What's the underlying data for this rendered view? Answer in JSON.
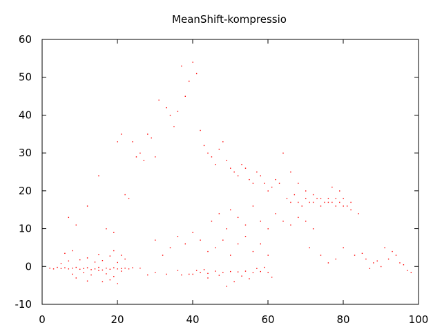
{
  "chart_data": {
    "type": "scatter",
    "title": "MeanShift-kompressio",
    "xlabel": "",
    "ylabel": "",
    "xlim": [
      0,
      100
    ],
    "ylim": [
      -10,
      60
    ],
    "xticks": [
      0,
      20,
      40,
      60,
      80,
      100
    ],
    "yticks": [
      -10,
      0,
      10,
      20,
      30,
      40,
      50,
      60
    ],
    "grid": false,
    "legend": "none",
    "colors": {
      "points": "#ff0000",
      "axes": "#000000",
      "background": "#ffffff"
    },
    "series": [
      {
        "values": [
          [
            2,
            -0.4
          ],
          [
            3,
            -0.6
          ],
          [
            4,
            -0.2
          ],
          [
            5,
            -0.5
          ],
          [
            6,
            -0.3
          ],
          [
            7,
            -0.6
          ],
          [
            8,
            -0.4
          ],
          [
            9,
            -0.2
          ],
          [
            10,
            -0.7
          ],
          [
            11,
            -0.5
          ],
          [
            12,
            -0.3
          ],
          [
            13,
            -0.8
          ],
          [
            14,
            -0.6
          ],
          [
            15,
            -0.2
          ],
          [
            16,
            -0.9
          ],
          [
            17,
            -0.4
          ],
          [
            18,
            -0.7
          ],
          [
            19,
            -0.3
          ],
          [
            20,
            -0.6
          ],
          [
            21,
            -0.5
          ],
          [
            22,
            -0.4
          ],
          [
            23,
            -0.6
          ],
          [
            24,
            -0.3
          ],
          [
            26,
            -0.4
          ],
          [
            5,
            0.8
          ],
          [
            7,
            1.5
          ],
          [
            8,
            -2.0
          ],
          [
            10,
            1.8
          ],
          [
            11,
            -1.6
          ],
          [
            12,
            2.3
          ],
          [
            13,
            -2.2
          ],
          [
            14,
            1.2
          ],
          [
            15,
            -1.0
          ],
          [
            16,
            1.6
          ],
          [
            17,
            -1.9
          ],
          [
            18,
            2.8
          ],
          [
            19,
            -2.6
          ],
          [
            20,
            1.1
          ],
          [
            21,
            -1.2
          ],
          [
            9,
            -3.0
          ],
          [
            15,
            3.2
          ],
          [
            18,
            -3.5
          ],
          [
            20,
            -4.5
          ],
          [
            19,
            4.2
          ],
          [
            21,
            3.0
          ],
          [
            6,
            3.5
          ],
          [
            8,
            4.2
          ],
          [
            12,
            -3.8
          ],
          [
            16,
            -4.0
          ],
          [
            22,
            2.0
          ],
          [
            7,
            13
          ],
          [
            9,
            11
          ],
          [
            12,
            16
          ],
          [
            15,
            24
          ],
          [
            17,
            10
          ],
          [
            19,
            9
          ],
          [
            20,
            33
          ],
          [
            21,
            35
          ],
          [
            22,
            19
          ],
          [
            23,
            18
          ],
          [
            24,
            33
          ],
          [
            25,
            29
          ],
          [
            26,
            30
          ],
          [
            27,
            28
          ],
          [
            28,
            35
          ],
          [
            29,
            34
          ],
          [
            30,
            29
          ],
          [
            31,
            44
          ],
          [
            33,
            42
          ],
          [
            34,
            40
          ],
          [
            35,
            37
          ],
          [
            36,
            41
          ],
          [
            37,
            53
          ],
          [
            38,
            45
          ],
          [
            39,
            49
          ],
          [
            40,
            54
          ],
          [
            41,
            51
          ],
          [
            42,
            36
          ],
          [
            43,
            32
          ],
          [
            44,
            30
          ],
          [
            45,
            29
          ],
          [
            46,
            27
          ],
          [
            47,
            31
          ],
          [
            48,
            33
          ],
          [
            49,
            28
          ],
          [
            50,
            26
          ],
          [
            51,
            25
          ],
          [
            52,
            24
          ],
          [
            53,
            27
          ],
          [
            54,
            26
          ],
          [
            55,
            23
          ],
          [
            56,
            22
          ],
          [
            57,
            25
          ],
          [
            58,
            24
          ],
          [
            59,
            22
          ],
          [
            60,
            20
          ],
          [
            61,
            21
          ],
          [
            62,
            23
          ],
          [
            63,
            22
          ],
          [
            64,
            30
          ],
          [
            66,
            25
          ],
          [
            68,
            22
          ],
          [
            70,
            20
          ],
          [
            72,
            19
          ],
          [
            74,
            18
          ],
          [
            76,
            17
          ],
          [
            78,
            18
          ],
          [
            80,
            16
          ],
          [
            82,
            15
          ],
          [
            84,
            14
          ],
          [
            65,
            18
          ],
          [
            66,
            17
          ],
          [
            67,
            19
          ],
          [
            68,
            17
          ],
          [
            69,
            16
          ],
          [
            70,
            18
          ],
          [
            71,
            17
          ],
          [
            72,
            17
          ],
          [
            73,
            18
          ],
          [
            74,
            16
          ],
          [
            75,
            17
          ],
          [
            76,
            18
          ],
          [
            77,
            17
          ],
          [
            78,
            16
          ],
          [
            79,
            17
          ],
          [
            80,
            18
          ],
          [
            81,
            16
          ],
          [
            82,
            17
          ],
          [
            79,
            20
          ],
          [
            77,
            21
          ],
          [
            45,
            12
          ],
          [
            47,
            14
          ],
          [
            49,
            10
          ],
          [
            50,
            15
          ],
          [
            52,
            13
          ],
          [
            54,
            11
          ],
          [
            56,
            16
          ],
          [
            58,
            12
          ],
          [
            60,
            10
          ],
          [
            62,
            14
          ],
          [
            64,
            12
          ],
          [
            66,
            11
          ],
          [
            68,
            13
          ],
          [
            70,
            12
          ],
          [
            72,
            10
          ],
          [
            46,
            5
          ],
          [
            48,
            7
          ],
          [
            50,
            3
          ],
          [
            52,
            6
          ],
          [
            54,
            8
          ],
          [
            56,
            4
          ],
          [
            58,
            6
          ],
          [
            60,
            3
          ],
          [
            40,
            -2
          ],
          [
            42,
            -1.5
          ],
          [
            44,
            -1.8
          ],
          [
            46,
            -1.2
          ],
          [
            48,
            -1.5
          ],
          [
            50,
            -1.3
          ],
          [
            52,
            -1.4
          ],
          [
            54,
            -1.2
          ],
          [
            56,
            -1.6
          ],
          [
            58,
            -1.3
          ],
          [
            60,
            -1.5
          ],
          [
            37,
            -2.2
          ],
          [
            39,
            -2.0
          ],
          [
            41,
            -1.0
          ],
          [
            43,
            -0.8
          ],
          [
            47,
            -2.3
          ],
          [
            53,
            -2.5
          ],
          [
            57,
            -0.5
          ],
          [
            59,
            -0.2
          ],
          [
            61,
            -2.8
          ],
          [
            55,
            -3.2
          ],
          [
            51,
            -4.0
          ],
          [
            49,
            -5.2
          ],
          [
            44,
            -3.0
          ],
          [
            36,
            -1.0
          ],
          [
            33,
            -2.0
          ],
          [
            30,
            -1.5
          ],
          [
            28,
            -2.2
          ],
          [
            32,
            3
          ],
          [
            34,
            5
          ],
          [
            38,
            6
          ],
          [
            42,
            7
          ],
          [
            44,
            4
          ],
          [
            36,
            8
          ],
          [
            40,
            9
          ],
          [
            30,
            7
          ],
          [
            71,
            5
          ],
          [
            74,
            3
          ],
          [
            76,
            1
          ],
          [
            78,
            2
          ],
          [
            83,
            3
          ],
          [
            86,
            2
          ],
          [
            88,
            1
          ],
          [
            90,
            0
          ],
          [
            92,
            2
          ],
          [
            94,
            3
          ],
          [
            95,
            1
          ],
          [
            96,
            0.5
          ],
          [
            97,
            -1
          ],
          [
            98,
            -1.5
          ],
          [
            93,
            4
          ],
          [
            91,
            5
          ],
          [
            89,
            1.5
          ],
          [
            87,
            -0.5
          ],
          [
            85,
            3.5
          ],
          [
            80,
            5
          ]
        ]
      }
    ]
  }
}
